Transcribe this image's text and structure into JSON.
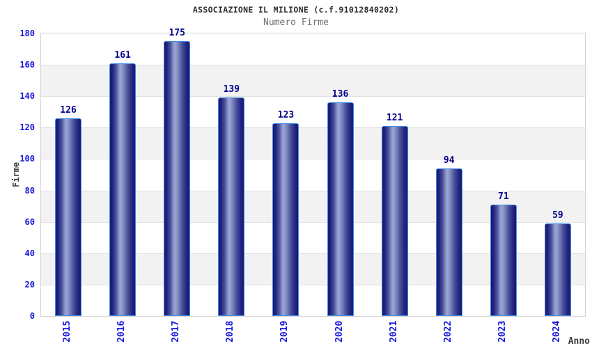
{
  "chart_data": {
    "type": "bar",
    "title": "ASSOCIAZIONE IL MILIONE (c.f.91012840202)",
    "subtitle": "Numero Firme",
    "categories": [
      "2015",
      "2016",
      "2017",
      "2018",
      "2019",
      "2020",
      "2021",
      "2022",
      "2023",
      "2024"
    ],
    "values": [
      126,
      161,
      175,
      139,
      123,
      136,
      121,
      94,
      71,
      59
    ],
    "xlabel": "Anno",
    "ylabel": "Firme",
    "ylim": [
      0,
      180
    ],
    "ytick_step": 20,
    "yticks": [
      0,
      20,
      40,
      60,
      80,
      100,
      120,
      140,
      160,
      180
    ],
    "grid": "horizontal gridline every 20 with alternating white/gray bands",
    "legend": "none",
    "value_labels": "above each bar",
    "colors": {
      "bar_dark": "#191974",
      "bar_highlight": "#9ba5d2",
      "bar_border": "#3f8fe8",
      "value_label": "#00008b",
      "tick_label": "#1515dd",
      "band_gray": "#f2f2f2",
      "gridline": "#e0e0e0",
      "plot_border": "#d2d2d2",
      "title": "#2b2b2b",
      "subtitle": "#707070",
      "axis_label": "#3c3c3c",
      "background": "#ffffff"
    }
  }
}
